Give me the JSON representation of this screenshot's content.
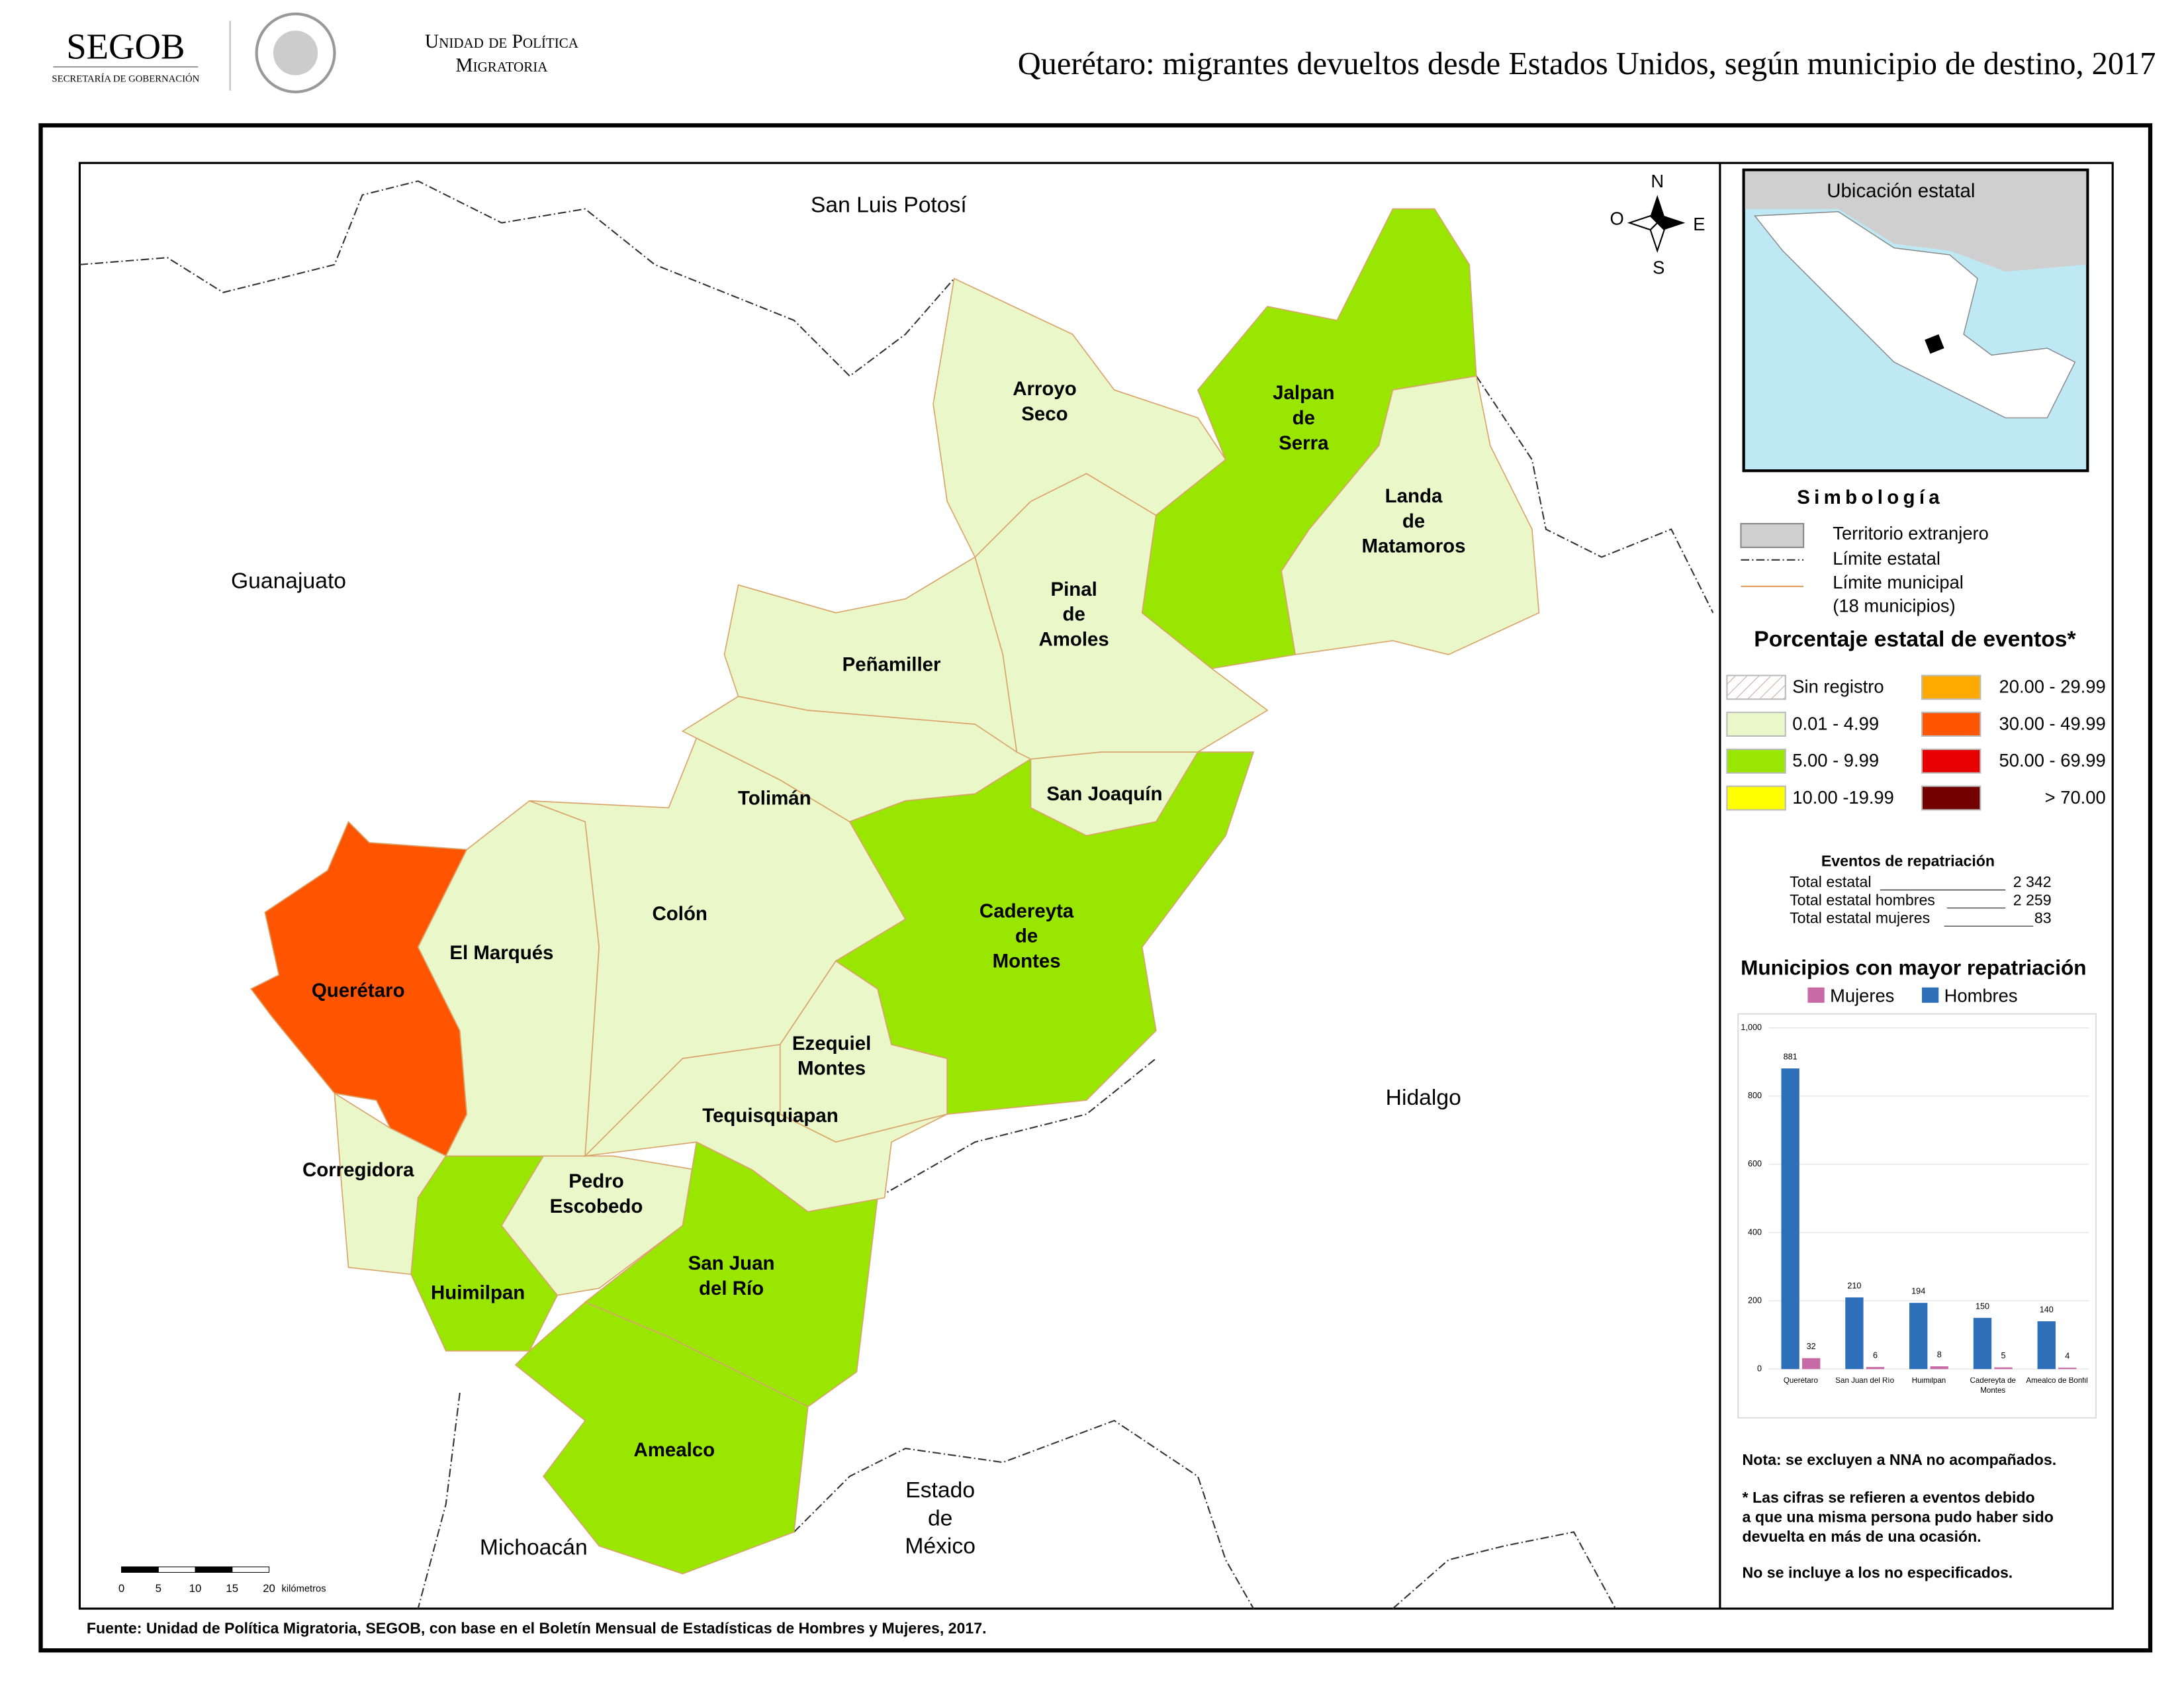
{
  "header": {
    "org": "SEGOB",
    "org_sub": "SECRETARÍA DE GOBERNACIÓN",
    "unit": [
      "Unidad de Política",
      "Migratoria"
    ],
    "title": "Querétaro: migrantes devueltos desde Estados Unidos, según municipio de destino, 2017"
  },
  "map": {
    "neighbors": [
      {
        "lines": [
          "San Luis Potosí"
        ]
      },
      {
        "lines": [
          "Guanajuato"
        ]
      },
      {
        "lines": [
          "Hidalgo"
        ]
      },
      {
        "lines": [
          "Estado",
          "de",
          "México"
        ]
      },
      {
        "lines": [
          "Michoacán"
        ]
      }
    ],
    "municipalities": [
      {
        "lines": [
          "Querétaro"
        ],
        "color": "#ff5500"
      },
      {
        "lines": [
          "Corregidora"
        ],
        "color": "#eaf7c9"
      },
      {
        "lines": [
          "Huimilpan"
        ],
        "color": "#99e600"
      },
      {
        "lines": [
          "Pedro",
          "Escobedo"
        ],
        "color": "#eaf7c9"
      },
      {
        "lines": [
          "San Juan",
          "del Río"
        ],
        "color": "#99e600"
      },
      {
        "lines": [
          "Amealco"
        ],
        "color": "#99e600"
      },
      {
        "lines": [
          "El Marqués"
        ],
        "color": "#eaf7c9"
      },
      {
        "lines": [
          "Colón"
        ],
        "color": "#eaf7c9"
      },
      {
        "lines": [
          "Tolimán"
        ],
        "color": "#eaf7c9"
      },
      {
        "lines": [
          "Peñamiller"
        ],
        "color": "#eaf7c9"
      },
      {
        "lines": [
          "Ezequiel",
          "Montes"
        ],
        "color": "#eaf7c9"
      },
      {
        "lines": [
          "Tequisquiapan"
        ],
        "color": "#eaf7c9"
      },
      {
        "lines": [
          "Cadereyta",
          "de",
          "Montes"
        ],
        "color": "#99e600"
      },
      {
        "lines": [
          "San Joaquín"
        ],
        "color": "#eaf7c9"
      },
      {
        "lines": [
          "Pinal",
          "de",
          "Amoles"
        ],
        "color": "#eaf7c9"
      },
      {
        "lines": [
          "Arroyo",
          "Seco"
        ],
        "color": "#eaf7c9"
      },
      {
        "lines": [
          "Jalpan",
          "de",
          "Serra"
        ],
        "color": "#99e600"
      },
      {
        "lines": [
          "Landa",
          "de",
          "Matamoros"
        ],
        "color": "#eaf7c9"
      }
    ],
    "compass": [
      "N",
      "O",
      "E",
      "S"
    ],
    "scale_bar": {
      "ticks": [
        0,
        5,
        10,
        15,
        20
      ],
      "unit": "kilómetros"
    }
  },
  "inset": {
    "title": "Ubicación estatal"
  },
  "legend": {
    "title": "Simbología",
    "items": [
      {
        "lines": [
          "Territorio extranjero"
        ]
      },
      {
        "lines": [
          "Límite estatal"
        ]
      },
      {
        "lines": [
          "Límite municipal",
          "(18 municipios)"
        ]
      }
    ],
    "percent_title": "Porcentaje estatal de eventos*",
    "classes": [
      {
        "label": "Sin registro",
        "color": "#ffffff"
      },
      {
        "label": "0.01  - 4.99",
        "color": "#eaf7c9"
      },
      {
        "label": "5.00  - 9.99",
        "color": "#99e600"
      },
      {
        "label": "10.00 -19.99",
        "color": "#ffff00"
      },
      {
        "label": "20.00 - 29.99",
        "color": "#ffaa00"
      },
      {
        "label": "30.00 - 49.99",
        "color": "#ff5500"
      },
      {
        "label": "50.00 - 69.99",
        "color": "#e60000"
      },
      {
        "label": "> 70.00",
        "color": "#730000"
      }
    ]
  },
  "repatriation": {
    "title": "Eventos de repatriación",
    "rows": [
      {
        "label": "Total estatal",
        "value": "2 342"
      },
      {
        "label": "Total estatal hombres",
        "value": "2 259"
      },
      {
        "label": "Total estatal mujeres",
        "value": "83"
      }
    ]
  },
  "chart_data": {
    "type": "bar",
    "title": "Municipios con mayor repatriación",
    "categories": [
      "Querétaro",
      "San Juan del Río",
      "Huimilpan",
      "Cadereyta de Montes",
      "Amealco de Bonfil"
    ],
    "series": [
      {
        "name": "Mujeres",
        "color": "#c86aa5",
        "values": [
          32,
          6,
          8,
          5,
          4
        ]
      },
      {
        "name": "Hombres",
        "color": "#2e6fba",
        "values": [
          881,
          210,
          194,
          150,
          140
        ]
      }
    ],
    "ylim": [
      0,
      1000
    ],
    "yticks": [
      0,
      200,
      400,
      600,
      800,
      {
        "value": 1000,
        "label": "1,000"
      }
    ],
    "grid": true
  },
  "notes": [
    "Nota: se excluyen a NNA no acompañados.",
    "* Las cifras se refieren a eventos debido",
    "a que una misma persona pudo haber sido",
    "devuelta en más de una ocasión.",
    "No se incluye a los no especificados."
  ],
  "source": "Fuente: Unidad de Política Migratoria, SEGOB, con base en el Boletín Mensual de Estadísticas de Hombres y Mujeres, 2017."
}
